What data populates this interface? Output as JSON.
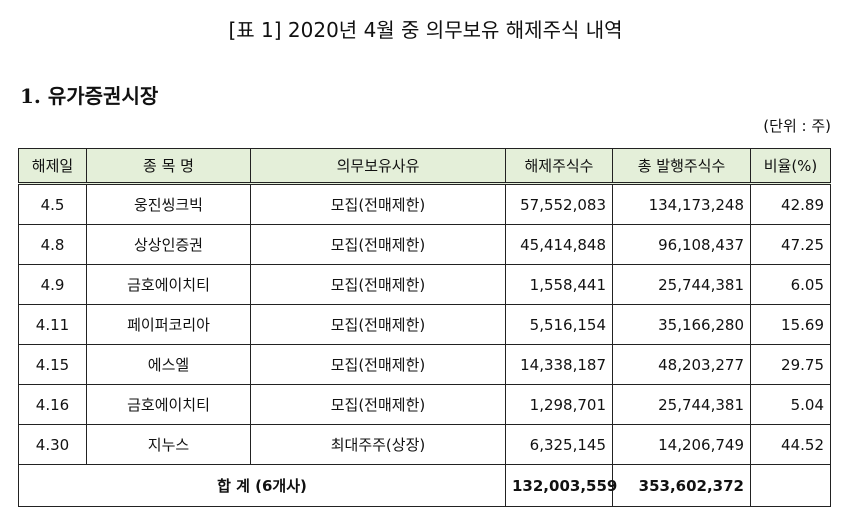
{
  "header": {
    "title": "[표 1] 2020년 4월 중 의무보유 해제주식 내역",
    "section": "1. 유가증권시장",
    "unit": "(단위 : 주)"
  },
  "table": {
    "columns": [
      "해제일",
      "종 목 명",
      "의무보유사유",
      "해제주식수",
      "총 발행주식수",
      "비율(%)"
    ],
    "rows": [
      [
        "4.5",
        "웅진씽크빅",
        "모집(전매제한)",
        "57,552,083",
        "134,173,248",
        "42.89"
      ],
      [
        "4.8",
        "상상인증권",
        "모집(전매제한)",
        "45,414,848",
        "96,108,437",
        "47.25"
      ],
      [
        "4.9",
        "금호에이치티",
        "모집(전매제한)",
        "1,558,441",
        "25,744,381",
        "6.05"
      ],
      [
        "4.11",
        "페이퍼코리아",
        "모집(전매제한)",
        "5,516,154",
        "35,166,280",
        "15.69"
      ],
      [
        "4.15",
        "에스엘",
        "모집(전매제한)",
        "14,338,187",
        "48,203,277",
        "29.75"
      ],
      [
        "4.16",
        "금호에이치티",
        "모집(전매제한)",
        "1,298,701",
        "25,744,381",
        "5.04"
      ],
      [
        "4.30",
        "지누스",
        "최대주주(상장)",
        "6,325,145",
        "14,206,749",
        "44.52"
      ]
    ],
    "total": {
      "label": "합 계 (6개사)",
      "released": "132,003,559",
      "issued": "353,602,372"
    }
  }
}
